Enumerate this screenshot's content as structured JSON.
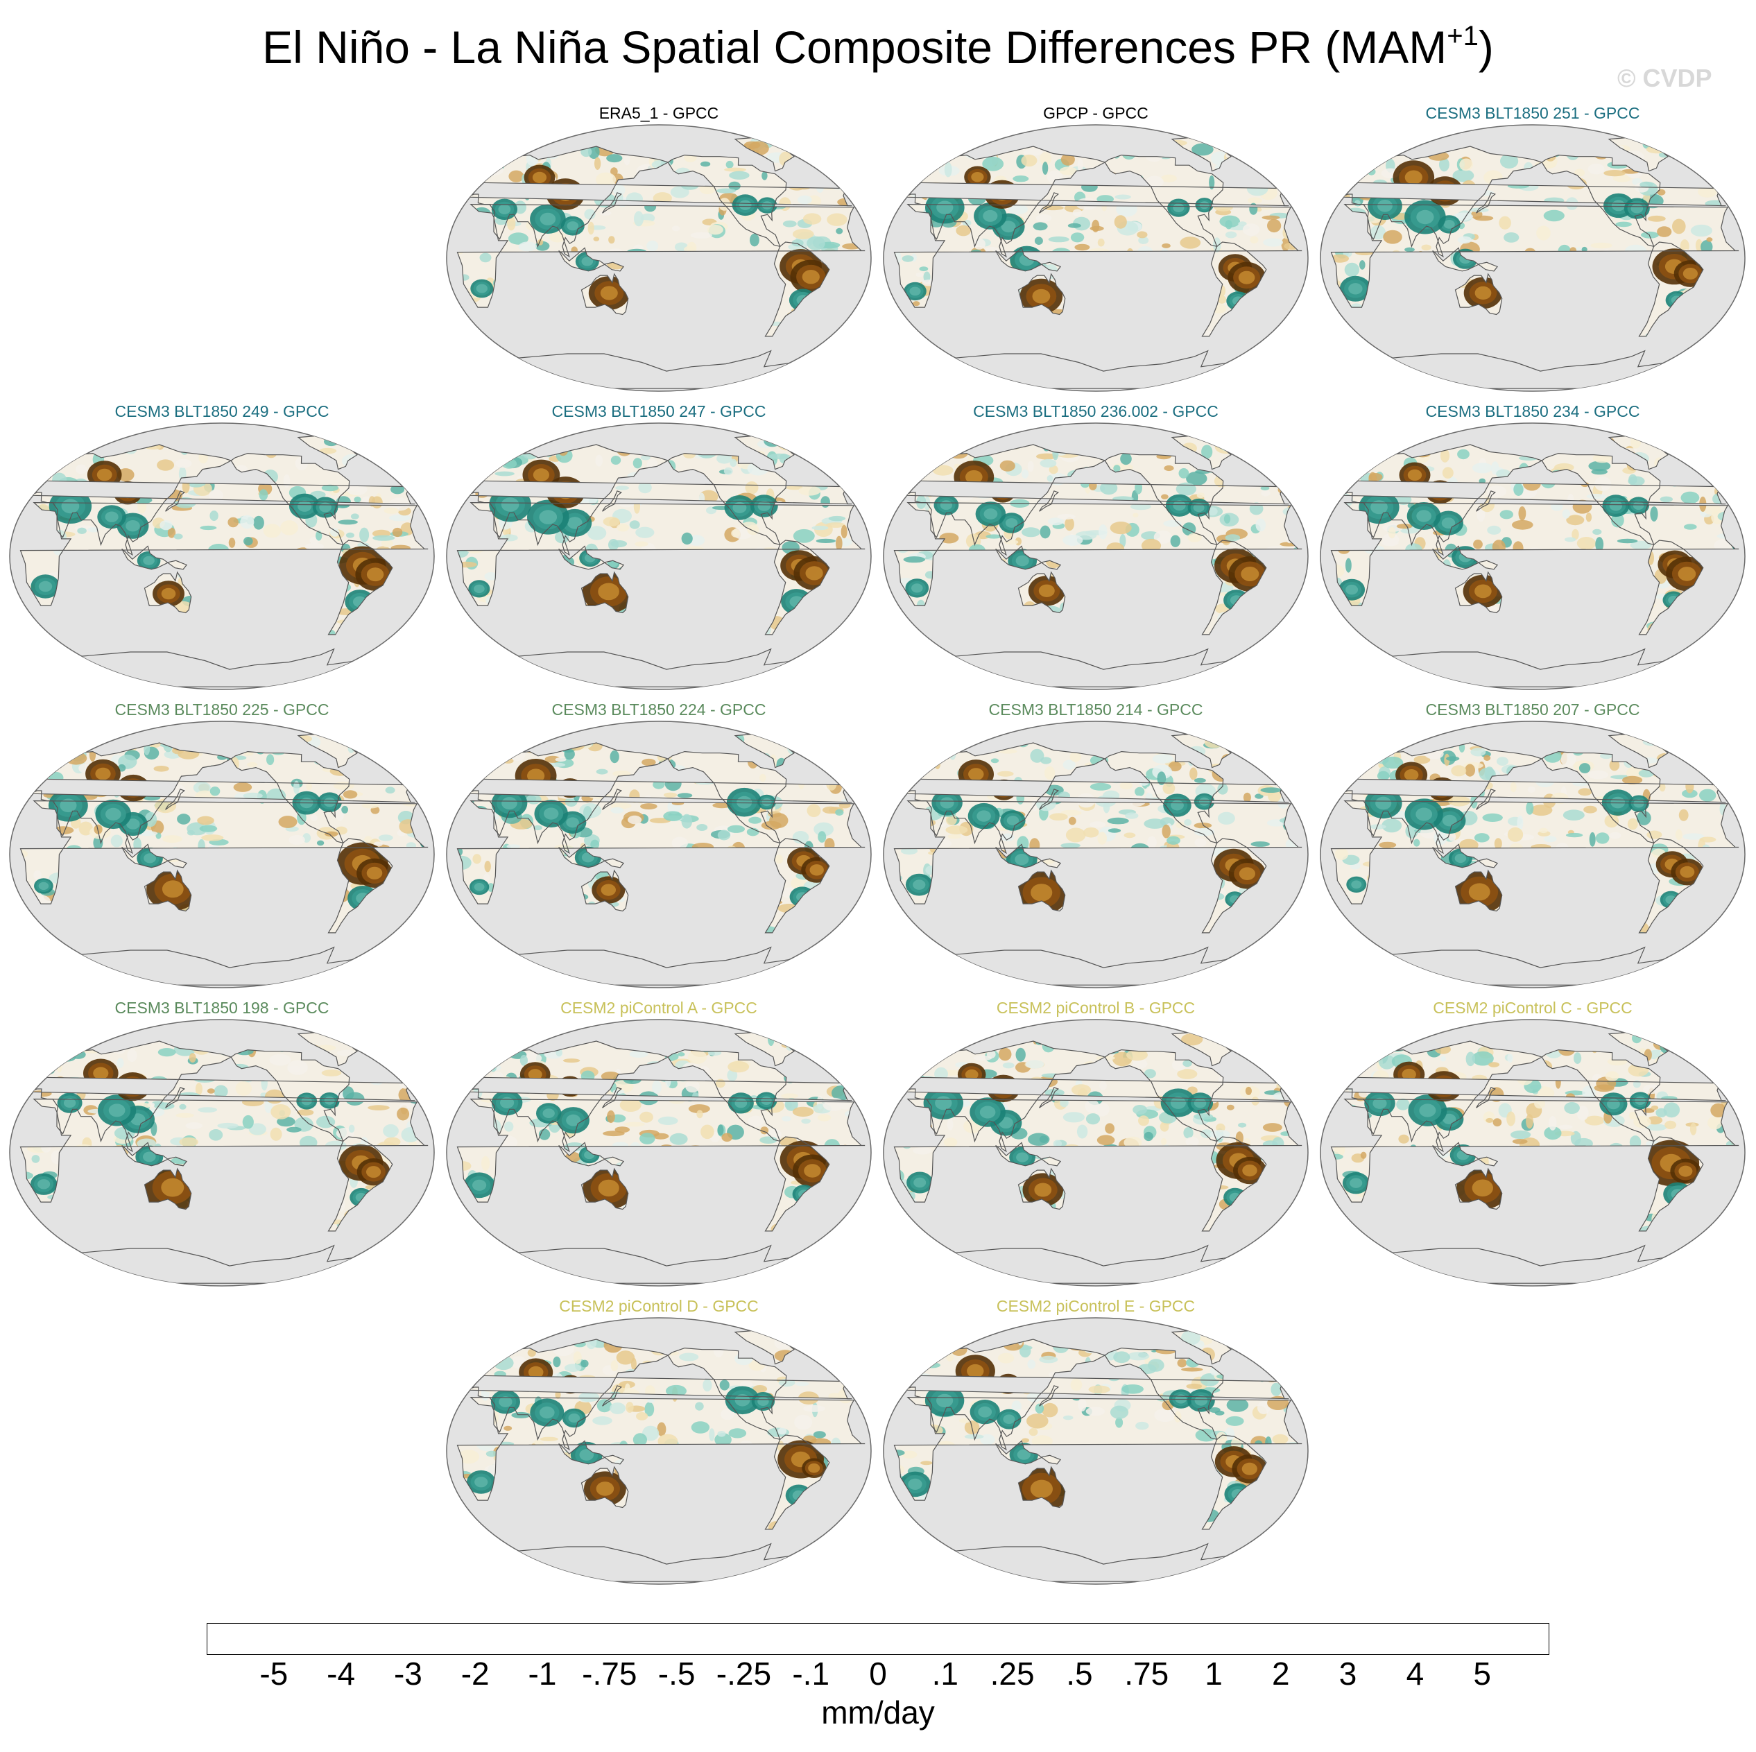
{
  "figure": {
    "title": "El Niño - La Niña Spatial Composite Differences PR (MAM",
    "title_sup": "+1",
    "title_end": ")",
    "watermark": "© CVDP"
  },
  "panels": [
    {
      "label": "ERA5_1 - GPCC",
      "color": "#000000"
    },
    {
      "label": "GPCP - GPCC",
      "color": "#000000"
    },
    {
      "label": "CESM3 BLT1850 251 - GPCC",
      "color": "#1b6e80"
    },
    {
      "label": "CESM3 BLT1850 249 - GPCC",
      "color": "#1b6e80"
    },
    {
      "label": "CESM3 BLT1850 247 - GPCC",
      "color": "#1b6e80"
    },
    {
      "label": "CESM3 BLT1850 236.002 - GPCC",
      "color": "#1b6e80"
    },
    {
      "label": "CESM3 BLT1850 234 - GPCC",
      "color": "#1b6e80"
    },
    {
      "label": "CESM3 BLT1850 225 - GPCC",
      "color": "#5a8a5c"
    },
    {
      "label": "CESM3 BLT1850 224 - GPCC",
      "color": "#5a8a5c"
    },
    {
      "label": "CESM3 BLT1850 214 - GPCC",
      "color": "#5a8a5c"
    },
    {
      "label": "CESM3 BLT1850 207 - GPCC",
      "color": "#5a8a5c"
    },
    {
      "label": "CESM3 BLT1850 198 - GPCC",
      "color": "#5a8a5c"
    },
    {
      "label": "CESM2 piControl A - GPCC",
      "color": "#c8c15a"
    },
    {
      "label": "CESM2 piControl B - GPCC",
      "color": "#c8c15a"
    },
    {
      "label": "CESM2 piControl C - GPCC",
      "color": "#c8c15a"
    },
    {
      "label": "CESM2 piControl D - GPCC",
      "color": "#c8c15a"
    },
    {
      "label": "CESM2 piControl E - GPCC",
      "color": "#c8c15a"
    }
  ],
  "colorbar": {
    "units": "mm/day",
    "tick_labels": [
      "-5",
      "-4",
      "-3",
      "-2",
      "-1",
      "-.75",
      "-.5",
      "-.25",
      "-.1",
      "0",
      ".1",
      ".25",
      ".5",
      ".75",
      "1",
      "2",
      "3",
      "4",
      "5"
    ],
    "colors": [
      "#543005",
      "#703f0b",
      "#8c5112",
      "#a86a21",
      "#c1862f",
      "#d4a863",
      "#e6c98d",
      "#f1dfb2",
      "#f7efd6",
      "#f4f1eb",
      "#e6f1ef",
      "#cde9e3",
      "#a9dcd2",
      "#88d1c2",
      "#5cb3a6",
      "#399b8f",
      "#1c8277",
      "#016b5d",
      "#01574b",
      "#003c30"
    ]
  },
  "map_style": {
    "ocean_color": "#e3e3e3",
    "coast_color": "#555555",
    "map_center_longitude": "180"
  }
}
